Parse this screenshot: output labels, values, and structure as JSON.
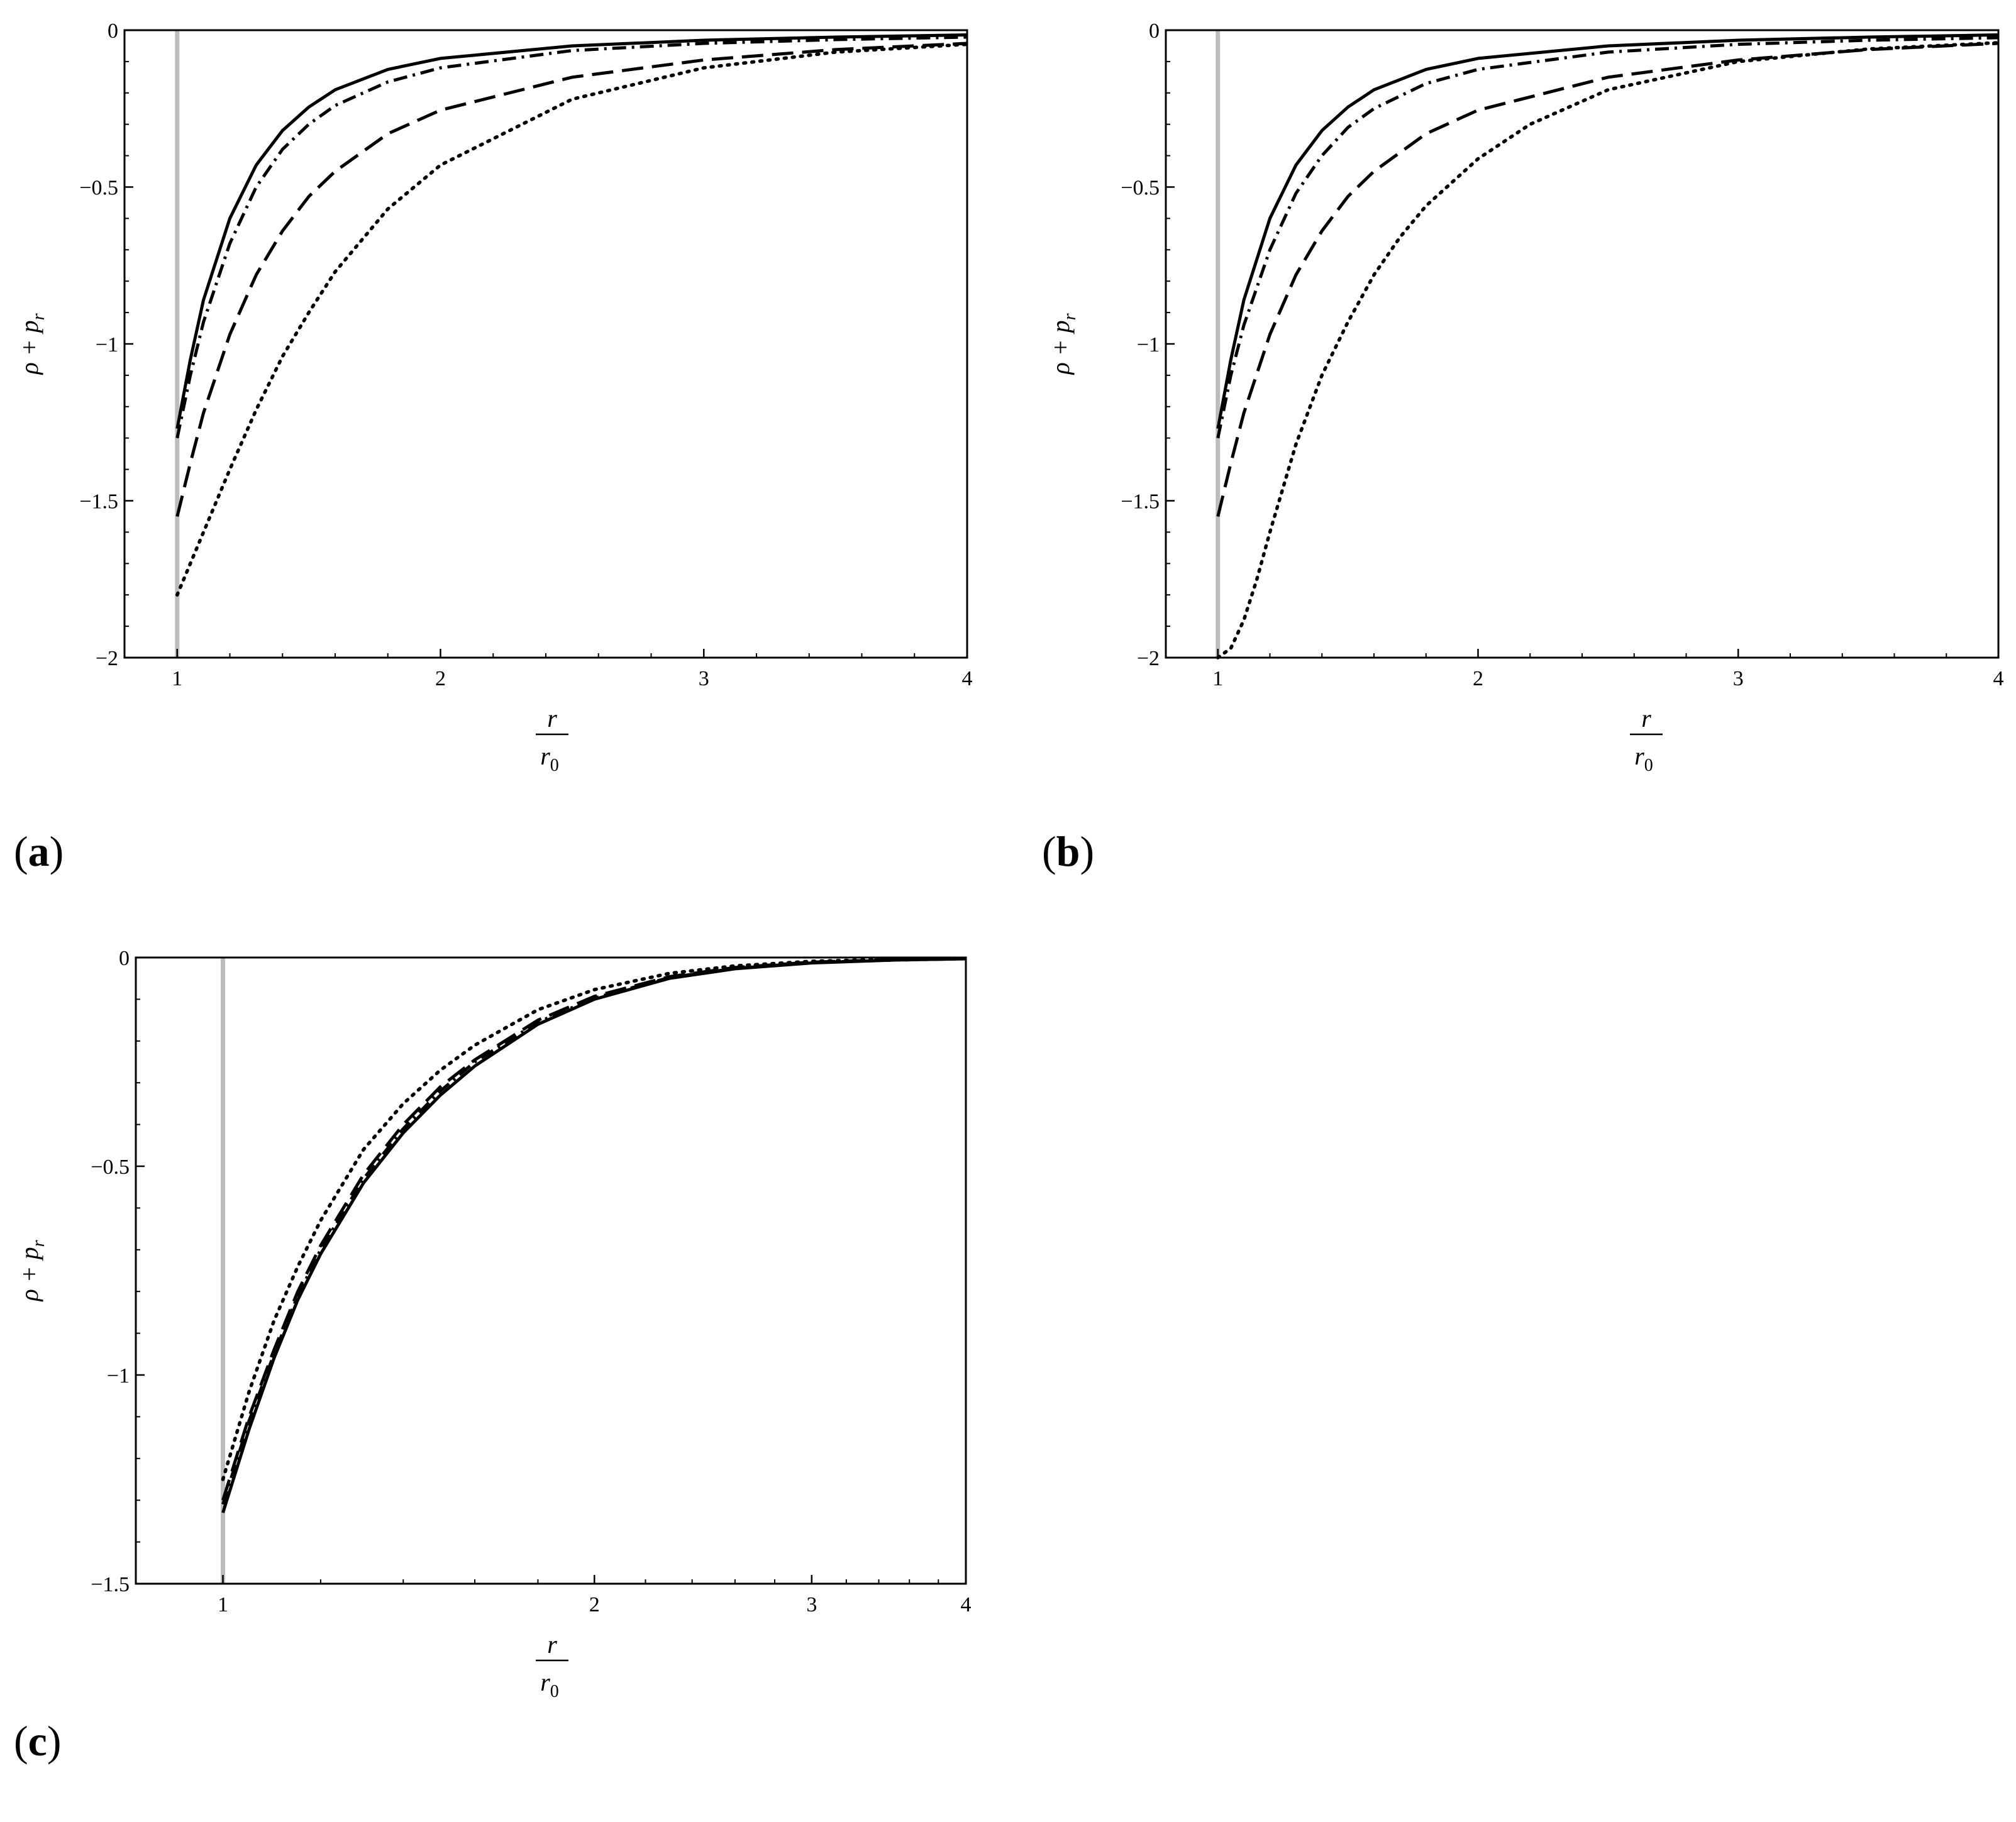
{
  "panels": [
    {
      "label": "a"
    },
    {
      "label": "b"
    },
    {
      "label": "c"
    }
  ],
  "colors": {
    "curve": "#000000",
    "reference_line": "#bdbdbd",
    "frame": "#000000"
  },
  "chart_data": [
    {
      "type": "line",
      "panel": "a",
      "xlabel_num": "r",
      "xlabel_den": "r0",
      "ylabel": "ρ + p_r",
      "xlim": [
        0.8,
        4.0
      ],
      "ylim": [
        -2.0,
        0.0
      ],
      "xscale": "linear",
      "xticks": [
        1,
        2,
        3,
        4
      ],
      "yticks": [
        0,
        -0.5,
        -1,
        -1.5,
        -2
      ],
      "ytick_labels": [
        "0",
        "−0.5",
        "−1",
        "−1.5",
        "−2"
      ],
      "reference_line_x": 1,
      "grid": false,
      "series": [
        {
          "style": "solid",
          "x": [
            1,
            1.05,
            1.1,
            1.2,
            1.3,
            1.4,
            1.5,
            1.6,
            1.8,
            2,
            2.5,
            3,
            3.5,
            4
          ],
          "y": [
            -1.27,
            -1.05,
            -0.86,
            -0.6,
            -0.43,
            -0.32,
            -0.245,
            -0.19,
            -0.125,
            -0.09,
            -0.05,
            -0.032,
            -0.022,
            -0.015
          ]
        },
        {
          "style": "dashdot",
          "x": [
            1,
            1.05,
            1.1,
            1.2,
            1.3,
            1.4,
            1.5,
            1.6,
            1.8,
            2,
            2.5,
            3,
            3.5,
            4
          ],
          "y": [
            -1.3,
            -1.1,
            -0.93,
            -0.68,
            -0.5,
            -0.38,
            -0.3,
            -0.24,
            -0.165,
            -0.12,
            -0.065,
            -0.042,
            -0.03,
            -0.022
          ]
        },
        {
          "style": "dashed",
          "x": [
            1,
            1.05,
            1.1,
            1.2,
            1.3,
            1.4,
            1.5,
            1.6,
            1.8,
            2,
            2.5,
            3,
            3.5,
            4
          ],
          "y": [
            -1.55,
            -1.38,
            -1.22,
            -0.97,
            -0.78,
            -0.64,
            -0.53,
            -0.45,
            -0.33,
            -0.255,
            -0.15,
            -0.095,
            -0.062,
            -0.042
          ]
        },
        {
          "style": "dotted",
          "x": [
            1,
            1.05,
            1.1,
            1.2,
            1.3,
            1.4,
            1.5,
            1.6,
            1.8,
            2,
            2.5,
            3,
            3.5,
            4
          ],
          "y": [
            -1.8,
            -1.7,
            -1.6,
            -1.4,
            -1.21,
            -1.04,
            -0.9,
            -0.77,
            -0.57,
            -0.43,
            -0.22,
            -0.12,
            -0.07,
            -0.045
          ]
        }
      ]
    },
    {
      "type": "line",
      "panel": "b",
      "xlabel_num": "r",
      "xlabel_den": "r0",
      "ylabel": "ρ + p_r",
      "xlim": [
        0.8,
        4.0
      ],
      "ylim": [
        -2.0,
        0.0
      ],
      "xscale": "linear",
      "xticks": [
        1,
        2,
        3,
        4
      ],
      "yticks": [
        0,
        -0.5,
        -1,
        -1.5,
        -2
      ],
      "ytick_labels": [
        "0",
        "−0.5",
        "−1",
        "−1.5",
        "−2"
      ],
      "reference_line_x": 1,
      "grid": false,
      "series": [
        {
          "style": "solid",
          "x": [
            1,
            1.05,
            1.1,
            1.2,
            1.3,
            1.4,
            1.5,
            1.6,
            1.8,
            2,
            2.5,
            3,
            3.5,
            4
          ],
          "y": [
            -1.27,
            -1.05,
            -0.86,
            -0.6,
            -0.43,
            -0.32,
            -0.245,
            -0.19,
            -0.125,
            -0.09,
            -0.05,
            -0.032,
            -0.022,
            -0.015
          ]
        },
        {
          "style": "dashdot",
          "x": [
            1,
            1.05,
            1.1,
            1.2,
            1.3,
            1.4,
            1.5,
            1.6,
            1.8,
            2,
            2.5,
            3,
            3.5,
            4
          ],
          "y": [
            -1.3,
            -1.1,
            -0.94,
            -0.7,
            -0.52,
            -0.4,
            -0.31,
            -0.25,
            -0.17,
            -0.125,
            -0.07,
            -0.045,
            -0.032,
            -0.024
          ]
        },
        {
          "style": "dashed",
          "x": [
            1,
            1.05,
            1.1,
            1.2,
            1.3,
            1.4,
            1.5,
            1.6,
            1.8,
            2,
            2.5,
            3,
            3.5,
            4
          ],
          "y": [
            -1.55,
            -1.38,
            -1.22,
            -0.97,
            -0.78,
            -0.64,
            -0.53,
            -0.45,
            -0.33,
            -0.255,
            -0.15,
            -0.095,
            -0.062,
            -0.042
          ]
        },
        {
          "style": "dotted",
          "x": [
            1,
            1.05,
            1.1,
            1.15,
            1.2,
            1.3,
            1.4,
            1.5,
            1.6,
            1.7,
            1.8,
            2,
            2.2,
            2.5,
            3,
            3.5,
            4
          ],
          "y": [
            -2.0,
            -1.97,
            -1.88,
            -1.75,
            -1.6,
            -1.32,
            -1.1,
            -0.93,
            -0.78,
            -0.66,
            -0.56,
            -0.41,
            -0.3,
            -0.19,
            -0.1,
            -0.06,
            -0.04
          ]
        }
      ]
    },
    {
      "type": "line",
      "panel": "c",
      "xlabel_num": "r",
      "xlabel_den": "r0",
      "ylabel": "ρ + p_r",
      "xlim": [
        0.85,
        4.0
      ],
      "ylim": [
        -1.5,
        0.0
      ],
      "xscale": "log",
      "xticks": [
        1,
        2,
        3,
        4
      ],
      "yticks": [
        0,
        -0.5,
        -1,
        -1.5
      ],
      "ytick_labels": [
        "0",
        "−0.5",
        "−1",
        "−1.5"
      ],
      "reference_line_x": 1,
      "grid": false,
      "series": [
        {
          "style": "solid",
          "x": [
            1,
            1.05,
            1.1,
            1.15,
            1.2,
            1.3,
            1.4,
            1.5,
            1.6,
            1.8,
            2,
            2.3,
            2.6,
            3,
            3.5,
            4
          ],
          "y": [
            -1.33,
            -1.13,
            -0.96,
            -0.82,
            -0.71,
            -0.54,
            -0.42,
            -0.33,
            -0.26,
            -0.16,
            -0.1,
            -0.05,
            -0.027,
            -0.013,
            -0.006,
            -0.003
          ]
        },
        {
          "style": "dashdot",
          "x": [
            1,
            1.05,
            1.1,
            1.15,
            1.2,
            1.3,
            1.4,
            1.5,
            1.6,
            1.8,
            2,
            2.3,
            2.6,
            3,
            3.5,
            4
          ],
          "y": [
            -1.31,
            -1.11,
            -0.95,
            -0.81,
            -0.7,
            -0.53,
            -0.41,
            -0.32,
            -0.25,
            -0.155,
            -0.097,
            -0.048,
            -0.026,
            -0.012,
            -0.006,
            -0.003
          ]
        },
        {
          "style": "dashed",
          "x": [
            1,
            1.05,
            1.1,
            1.15,
            1.2,
            1.3,
            1.4,
            1.5,
            1.6,
            1.8,
            2,
            2.3,
            2.6,
            3,
            3.5,
            4
          ],
          "y": [
            -1.3,
            -1.1,
            -0.94,
            -0.8,
            -0.69,
            -0.52,
            -0.4,
            -0.31,
            -0.245,
            -0.15,
            -0.093,
            -0.046,
            -0.024,
            -0.011,
            -0.005,
            -0.003
          ]
        },
        {
          "style": "dotted",
          "x": [
            1,
            1.05,
            1.1,
            1.15,
            1.2,
            1.3,
            1.4,
            1.5,
            1.6,
            1.8,
            2,
            2.3,
            2.6,
            3,
            3.5,
            4
          ],
          "y": [
            -1.25,
            -1.04,
            -0.87,
            -0.74,
            -0.63,
            -0.46,
            -0.35,
            -0.27,
            -0.21,
            -0.125,
            -0.077,
            -0.038,
            -0.02,
            -0.009,
            -0.004,
            -0.002
          ]
        }
      ]
    }
  ]
}
